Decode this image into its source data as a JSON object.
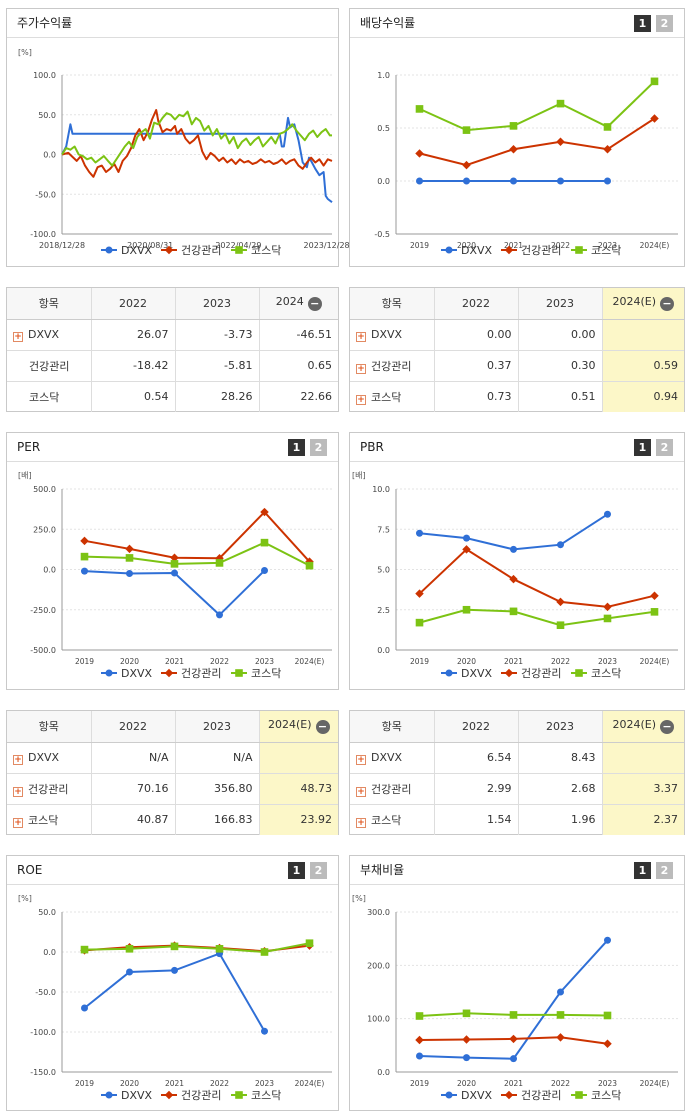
{
  "colors": {
    "dxvx": "#2f6fd6",
    "health": "#cc3300",
    "kosdaq": "#7cc314"
  },
  "page_buttons": [
    "1",
    "2"
  ],
  "panels": {
    "price": {
      "title": "주가수익률",
      "unit": "[%]"
    },
    "dividend": {
      "title": "배당수익률",
      "unit": ""
    },
    "per": {
      "title": "PER",
      "unit": "[배]"
    },
    "pbr": {
      "title": "PBR",
      "unit": "[배]"
    },
    "roe": {
      "title": "ROE",
      "unit": "[%]"
    },
    "debt": {
      "title": "부채비율",
      "unit": "[%]"
    }
  },
  "legend": [
    "DXVX",
    "건강관리",
    "코스닥"
  ],
  "tables": {
    "price": {
      "headers": [
        "항목",
        "2022",
        "2023",
        "2024"
      ],
      "rows": [
        {
          "name": "DXVX",
          "plus": true,
          "v": [
            "26.07",
            "-3.73",
            "-46.51"
          ]
        },
        {
          "name": "건강관리",
          "plus": false,
          "v": [
            "-18.42",
            "-5.81",
            "0.65"
          ]
        },
        {
          "name": "코스닥",
          "plus": false,
          "v": [
            "0.54",
            "28.26",
            "22.66"
          ]
        }
      ]
    },
    "dividend": {
      "headers": [
        "항목",
        "2022",
        "2023",
        "2024(E)"
      ],
      "rows": [
        {
          "name": "DXVX",
          "plus": true,
          "v": [
            "0.00",
            "0.00",
            ""
          ]
        },
        {
          "name": "건강관리",
          "plus": true,
          "v": [
            "0.37",
            "0.30",
            "0.59"
          ]
        },
        {
          "name": "코스닥",
          "plus": true,
          "v": [
            "0.73",
            "0.51",
            "0.94"
          ]
        }
      ]
    },
    "per": {
      "headers": [
        "항목",
        "2022",
        "2023",
        "2024(E)"
      ],
      "rows": [
        {
          "name": "DXVX",
          "plus": true,
          "v": [
            "N/A",
            "N/A",
            ""
          ]
        },
        {
          "name": "건강관리",
          "plus": true,
          "v": [
            "70.16",
            "356.80",
            "48.73"
          ]
        },
        {
          "name": "코스닥",
          "plus": true,
          "v": [
            "40.87",
            "166.83",
            "23.92"
          ]
        }
      ]
    },
    "pbr": {
      "headers": [
        "항목",
        "2022",
        "2023",
        "2024(E)"
      ],
      "rows": [
        {
          "name": "DXVX",
          "plus": true,
          "v": [
            "6.54",
            "8.43",
            ""
          ]
        },
        {
          "name": "건강관리",
          "plus": true,
          "v": [
            "2.99",
            "2.68",
            "3.37"
          ]
        },
        {
          "name": "코스닥",
          "plus": true,
          "v": [
            "1.54",
            "1.96",
            "2.37"
          ]
        }
      ]
    }
  },
  "chart_data": [
    {
      "id": "price",
      "type": "line",
      "title": "주가수익률",
      "ylabel": "[%]",
      "ylim": [
        -100,
        100
      ],
      "yticks": [
        "100.0",
        "50.0",
        "0.0",
        "-50.0",
        "-100.0"
      ],
      "xticks": [
        "2018/12/28",
        "2020/08/31",
        "2022/04/29",
        "2023/12/28"
      ],
      "n": 130,
      "series": [
        {
          "name": "DXVX",
          "key": "dxvx",
          "points": [
            [
              0,
              0
            ],
            [
              2,
              10
            ],
            [
              4,
              38
            ],
            [
              5,
              26
            ],
            [
              20,
              26
            ],
            [
              40,
              26
            ],
            [
              60,
              26
            ],
            [
              80,
              26
            ],
            [
              100,
              26
            ],
            [
              104,
              26
            ],
            [
              105,
              10
            ],
            [
              106,
              10
            ],
            [
              108,
              46
            ],
            [
              109,
              34
            ],
            [
              111,
              38
            ],
            [
              113,
              18
            ],
            [
              115,
              -10
            ],
            [
              117,
              -16
            ],
            [
              118,
              -4
            ],
            [
              119,
              -8
            ],
            [
              121,
              -18
            ],
            [
              123,
              -26
            ],
            [
              125,
              -22
            ],
            [
              126,
              -52
            ],
            [
              127,
              -56
            ],
            [
              129,
              -60
            ]
          ]
        },
        {
          "name": "건강관리",
          "key": "health",
          "points": [
            [
              0,
              0
            ],
            [
              3,
              2
            ],
            [
              5,
              -3
            ],
            [
              7,
              -8
            ],
            [
              9,
              -2
            ],
            [
              11,
              -14
            ],
            [
              13,
              -22
            ],
            [
              15,
              -28
            ],
            [
              17,
              -16
            ],
            [
              19,
              -14
            ],
            [
              21,
              -22
            ],
            [
              23,
              -18
            ],
            [
              25,
              -12
            ],
            [
              27,
              -22
            ],
            [
              29,
              -8
            ],
            [
              31,
              -2
            ],
            [
              33,
              8
            ],
            [
              35,
              24
            ],
            [
              37,
              32
            ],
            [
              39,
              18
            ],
            [
              41,
              28
            ],
            [
              43,
              44
            ],
            [
              45,
              56
            ],
            [
              46,
              42
            ],
            [
              48,
              28
            ],
            [
              50,
              32
            ],
            [
              52,
              30
            ],
            [
              54,
              36
            ],
            [
              55,
              26
            ],
            [
              57,
              32
            ],
            [
              59,
              20
            ],
            [
              61,
              14
            ],
            [
              63,
              18
            ],
            [
              65,
              24
            ],
            [
              67,
              4
            ],
            [
              69,
              -6
            ],
            [
              71,
              2
            ],
            [
              73,
              -2
            ],
            [
              75,
              -8
            ],
            [
              77,
              -4
            ],
            [
              79,
              -10
            ],
            [
              81,
              -6
            ],
            [
              83,
              -12
            ],
            [
              85,
              -6
            ],
            [
              87,
              -10
            ],
            [
              89,
              -8
            ],
            [
              91,
              -12
            ],
            [
              93,
              -10
            ],
            [
              95,
              -6
            ],
            [
              97,
              -10
            ],
            [
              99,
              -8
            ],
            [
              101,
              -12
            ],
            [
              103,
              -10
            ],
            [
              105,
              -6
            ],
            [
              107,
              -12
            ],
            [
              109,
              -8
            ],
            [
              111,
              -6
            ],
            [
              113,
              -14
            ],
            [
              115,
              -18
            ],
            [
              117,
              -10
            ],
            [
              119,
              -4
            ],
            [
              121,
              -10
            ],
            [
              123,
              -6
            ],
            [
              125,
              -14
            ],
            [
              127,
              -6
            ],
            [
              129,
              -8
            ]
          ]
        },
        {
          "name": "코스닥",
          "key": "kosdaq",
          "points": [
            [
              0,
              0
            ],
            [
              2,
              8
            ],
            [
              4,
              6
            ],
            [
              6,
              10
            ],
            [
              8,
              0
            ],
            [
              10,
              -2
            ],
            [
              12,
              -6
            ],
            [
              14,
              -4
            ],
            [
              16,
              -10
            ],
            [
              18,
              -6
            ],
            [
              20,
              -2
            ],
            [
              22,
              -8
            ],
            [
              24,
              -14
            ],
            [
              26,
              -6
            ],
            [
              28,
              2
            ],
            [
              30,
              10
            ],
            [
              32,
              16
            ],
            [
              34,
              8
            ],
            [
              36,
              22
            ],
            [
              38,
              28
            ],
            [
              40,
              32
            ],
            [
              42,
              20
            ],
            [
              44,
              40
            ],
            [
              46,
              38
            ],
            [
              48,
              46
            ],
            [
              50,
              52
            ],
            [
              52,
              50
            ],
            [
              54,
              44
            ],
            [
              56,
              50
            ],
            [
              58,
              48
            ],
            [
              60,
              54
            ],
            [
              62,
              38
            ],
            [
              64,
              46
            ],
            [
              66,
              42
            ],
            [
              68,
              30
            ],
            [
              70,
              36
            ],
            [
              72,
              24
            ],
            [
              74,
              32
            ],
            [
              76,
              20
            ],
            [
              78,
              26
            ],
            [
              80,
              14
            ],
            [
              82,
              22
            ],
            [
              84,
              8
            ],
            [
              86,
              16
            ],
            [
              88,
              20
            ],
            [
              90,
              12
            ],
            [
              92,
              18
            ],
            [
              94,
              22
            ],
            [
              96,
              10
            ],
            [
              98,
              16
            ],
            [
              100,
              22
            ],
            [
              102,
              14
            ],
            [
              104,
              26
            ],
            [
              106,
              28
            ],
            [
              108,
              32
            ],
            [
              110,
              38
            ],
            [
              112,
              30
            ],
            [
              114,
              24
            ],
            [
              116,
              18
            ],
            [
              118,
              26
            ],
            [
              120,
              30
            ],
            [
              122,
              22
            ],
            [
              124,
              28
            ],
            [
              126,
              32
            ],
            [
              128,
              24
            ],
            [
              129,
              24
            ]
          ]
        }
      ]
    },
    {
      "id": "dividend",
      "type": "line",
      "title": "배당수익률",
      "ylim": [
        -0.5,
        1.0
      ],
      "yticks": [
        "1.0",
        "0.5",
        "0.0",
        "-0.5"
      ],
      "categories": [
        "2019",
        "2020",
        "2021",
        "2022",
        "2023",
        "2024(E)"
      ],
      "series": [
        {
          "name": "DXVX",
          "key": "dxvx",
          "values": [
            0.0,
            0.0,
            0.0,
            0.0,
            0.0,
            null
          ]
        },
        {
          "name": "건강관리",
          "key": "health",
          "values": [
            0.26,
            0.15,
            0.3,
            0.37,
            0.3,
            0.59
          ]
        },
        {
          "name": "코스닥",
          "key": "kosdaq",
          "values": [
            0.68,
            0.48,
            0.52,
            0.73,
            0.51,
            0.94
          ]
        }
      ]
    },
    {
      "id": "per",
      "type": "line",
      "title": "PER",
      "ylabel": "[배]",
      "ylim": [
        -500,
        500
      ],
      "yticks": [
        "500.0",
        "250.0",
        "0.0",
        "-250.0",
        "-500.0"
      ],
      "categories": [
        "2019",
        "2020",
        "2021",
        "2022",
        "2023",
        "2024(E)"
      ],
      "series": [
        {
          "name": "DXVX",
          "key": "dxvx",
          "values": [
            -10,
            -25,
            -22,
            -282,
            -6,
            null
          ]
        },
        {
          "name": "건강관리",
          "key": "health",
          "values": [
            178,
            128,
            73,
            70.16,
            356.8,
            48.73
          ]
        },
        {
          "name": "코스닥",
          "key": "kosdaq",
          "values": [
            80,
            72,
            35,
            40.87,
            166.83,
            23.92
          ]
        }
      ]
    },
    {
      "id": "pbr",
      "type": "line",
      "title": "PBR",
      "ylabel": "[배]",
      "ylim": [
        0,
        10
      ],
      "yticks": [
        "10.0",
        "7.5",
        "5.0",
        "2.5",
        "0.0"
      ],
      "categories": [
        "2019",
        "2020",
        "2021",
        "2022",
        "2023",
        "2024(E)"
      ],
      "series": [
        {
          "name": "DXVX",
          "key": "dxvx",
          "values": [
            7.25,
            6.95,
            6.25,
            6.54,
            8.43,
            null
          ]
        },
        {
          "name": "건강관리",
          "key": "health",
          "values": [
            3.5,
            6.25,
            4.4,
            2.99,
            2.68,
            3.37
          ]
        },
        {
          "name": "코스닥",
          "key": "kosdaq",
          "values": [
            1.7,
            2.5,
            2.4,
            1.54,
            1.96,
            2.37
          ]
        }
      ]
    },
    {
      "id": "roe",
      "type": "line",
      "title": "ROE",
      "ylabel": "[%]",
      "ylim": [
        -150,
        50
      ],
      "yticks": [
        "50.0",
        "0.0",
        "-50.0",
        "-100.0",
        "-150.0"
      ],
      "categories": [
        "2019",
        "2020",
        "2021",
        "2022",
        "2023",
        "2024(E)"
      ],
      "series": [
        {
          "name": "DXVX",
          "key": "dxvx",
          "values": [
            -70,
            -25,
            -23,
            -2,
            -99,
            null
          ]
        },
        {
          "name": "건강관리",
          "key": "health",
          "values": [
            2,
            6,
            8,
            5,
            1,
            8
          ]
        },
        {
          "name": "코스닥",
          "key": "kosdaq",
          "values": [
            3,
            4,
            7,
            4,
            0,
            11
          ]
        }
      ]
    },
    {
      "id": "debt",
      "type": "line",
      "title": "부채비율",
      "ylabel": "[%]",
      "ylim": [
        0,
        300
      ],
      "yticks": [
        "300.0",
        "200.0",
        "100.0",
        "0.0"
      ],
      "categories": [
        "2019",
        "2020",
        "2021",
        "2022",
        "2023",
        "2024(E)"
      ],
      "series": [
        {
          "name": "DXVX",
          "key": "dxvx",
          "values": [
            30,
            27,
            25,
            150,
            247,
            null
          ]
        },
        {
          "name": "건강관리",
          "key": "health",
          "values": [
            60,
            61,
            62,
            65,
            53,
            null
          ]
        },
        {
          "name": "코스닥",
          "key": "kosdaq",
          "values": [
            105,
            110,
            107,
            107,
            106,
            null
          ]
        }
      ]
    }
  ]
}
